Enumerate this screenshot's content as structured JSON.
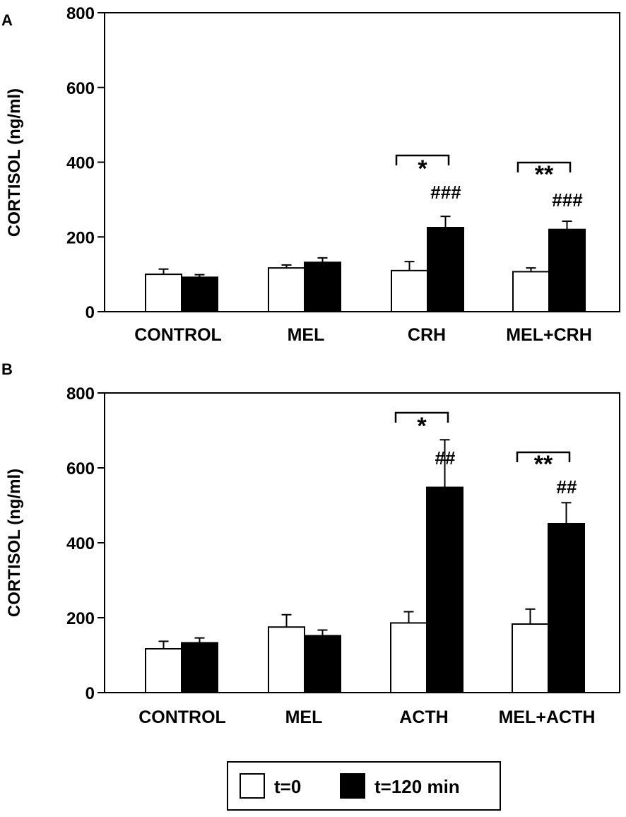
{
  "chart_data": [
    {
      "type": "bar",
      "panel_label": "A",
      "ylabel": "CORTISOL  (ng/ml)",
      "ylim": [
        0,
        800
      ],
      "yticks": [
        "0",
        "200",
        "400",
        "600",
        "800"
      ],
      "categories": [
        "CONTROL",
        "MEL",
        "CRH",
        "MEL+CRH"
      ],
      "series": [
        {
          "name": "t=0",
          "values": [
            100,
            117,
            110,
            107
          ],
          "errors": [
            14,
            8,
            24,
            10
          ]
        },
        {
          "name": "t=120 min",
          "values": [
            92,
            132,
            225,
            220
          ],
          "errors": [
            7,
            12,
            30,
            22
          ]
        }
      ],
      "brackets": [
        {
          "category": 2,
          "label": "*"
        },
        {
          "category": 3,
          "label": "**"
        }
      ],
      "marks": [
        {
          "category": 2,
          "label": "###"
        },
        {
          "category": 3,
          "label": "###"
        }
      ]
    },
    {
      "type": "bar",
      "panel_label": "B",
      "ylabel": "CORTISOL  (ng/ml)",
      "ylim": [
        0,
        800
      ],
      "yticks": [
        "0",
        "200",
        "400",
        "600",
        "800"
      ],
      "categories": [
        "CONTROL",
        "MEL",
        "ACTH",
        "MEL+ACTH"
      ],
      "series": [
        {
          "name": "t=0",
          "values": [
            117,
            175,
            186,
            183
          ],
          "errors": [
            20,
            33,
            30,
            40
          ]
        },
        {
          "name": "t=120 min",
          "values": [
            133,
            152,
            548,
            451
          ],
          "errors": [
            13,
            15,
            127,
            56
          ]
        }
      ],
      "brackets": [
        {
          "category": 2,
          "label": "*"
        },
        {
          "category": 3,
          "label": "**"
        }
      ],
      "marks": [
        {
          "category": 2,
          "label": "##"
        },
        {
          "category": 3,
          "label": "##"
        }
      ]
    }
  ],
  "legend": {
    "items": [
      {
        "label": "t=0",
        "color": "#ffffff"
      },
      {
        "label": "t=120 min",
        "color": "#000000"
      }
    ]
  }
}
